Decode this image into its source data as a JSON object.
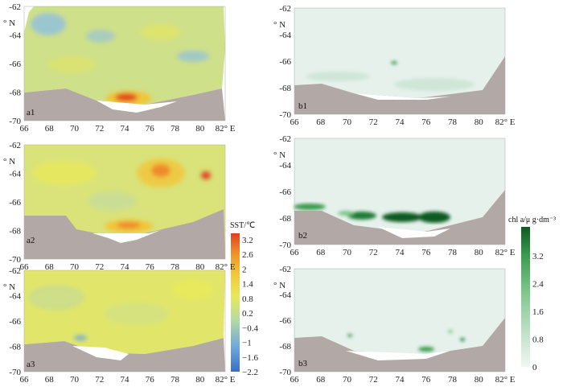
{
  "axes": {
    "lat_ticks": [
      "-62",
      "-64",
      "-66",
      "-68",
      "-70"
    ],
    "lon_ticks": [
      "66",
      "68",
      "70",
      "72",
      "74",
      "76",
      "78",
      "80",
      "82"
    ],
    "lat_unit": "° N",
    "lon_unit": "° E"
  },
  "panels": {
    "a1": {
      "label": "a1"
    },
    "a2": {
      "label": "a2"
    },
    "a3": {
      "label": "a3"
    },
    "b1": {
      "label": "b1"
    },
    "b2": {
      "label": "b2"
    },
    "b3": {
      "label": "b3"
    }
  },
  "sst_colorbar": {
    "title": "SST/℃",
    "ticks": [
      "3.2",
      "2.6",
      "2",
      "1.4",
      "0.8",
      "0.2",
      "−0.4",
      "−1",
      "−1.6",
      "−2.2"
    ],
    "colors": [
      "#3a6fc4",
      "#6fa8dc",
      "#b7dca2",
      "#e8e85a",
      "#f2c438",
      "#ee8a2a",
      "#e0401c"
    ]
  },
  "chl_colorbar": {
    "title": "chl a/μ g·dm⁻³",
    "ticks": [
      "3.2",
      "2.4",
      "1.6",
      "0.8",
      "0"
    ],
    "colors": [
      "#eaf3ee",
      "#bfe0c8",
      "#7cc48a",
      "#3a9a4e",
      "#0f5a22"
    ]
  },
  "colors": {
    "land": "#b2a8a5",
    "ice_shelf": "#ffffff",
    "sst_base": "#cfe08a",
    "chl_base": "#e6f1ec"
  }
}
